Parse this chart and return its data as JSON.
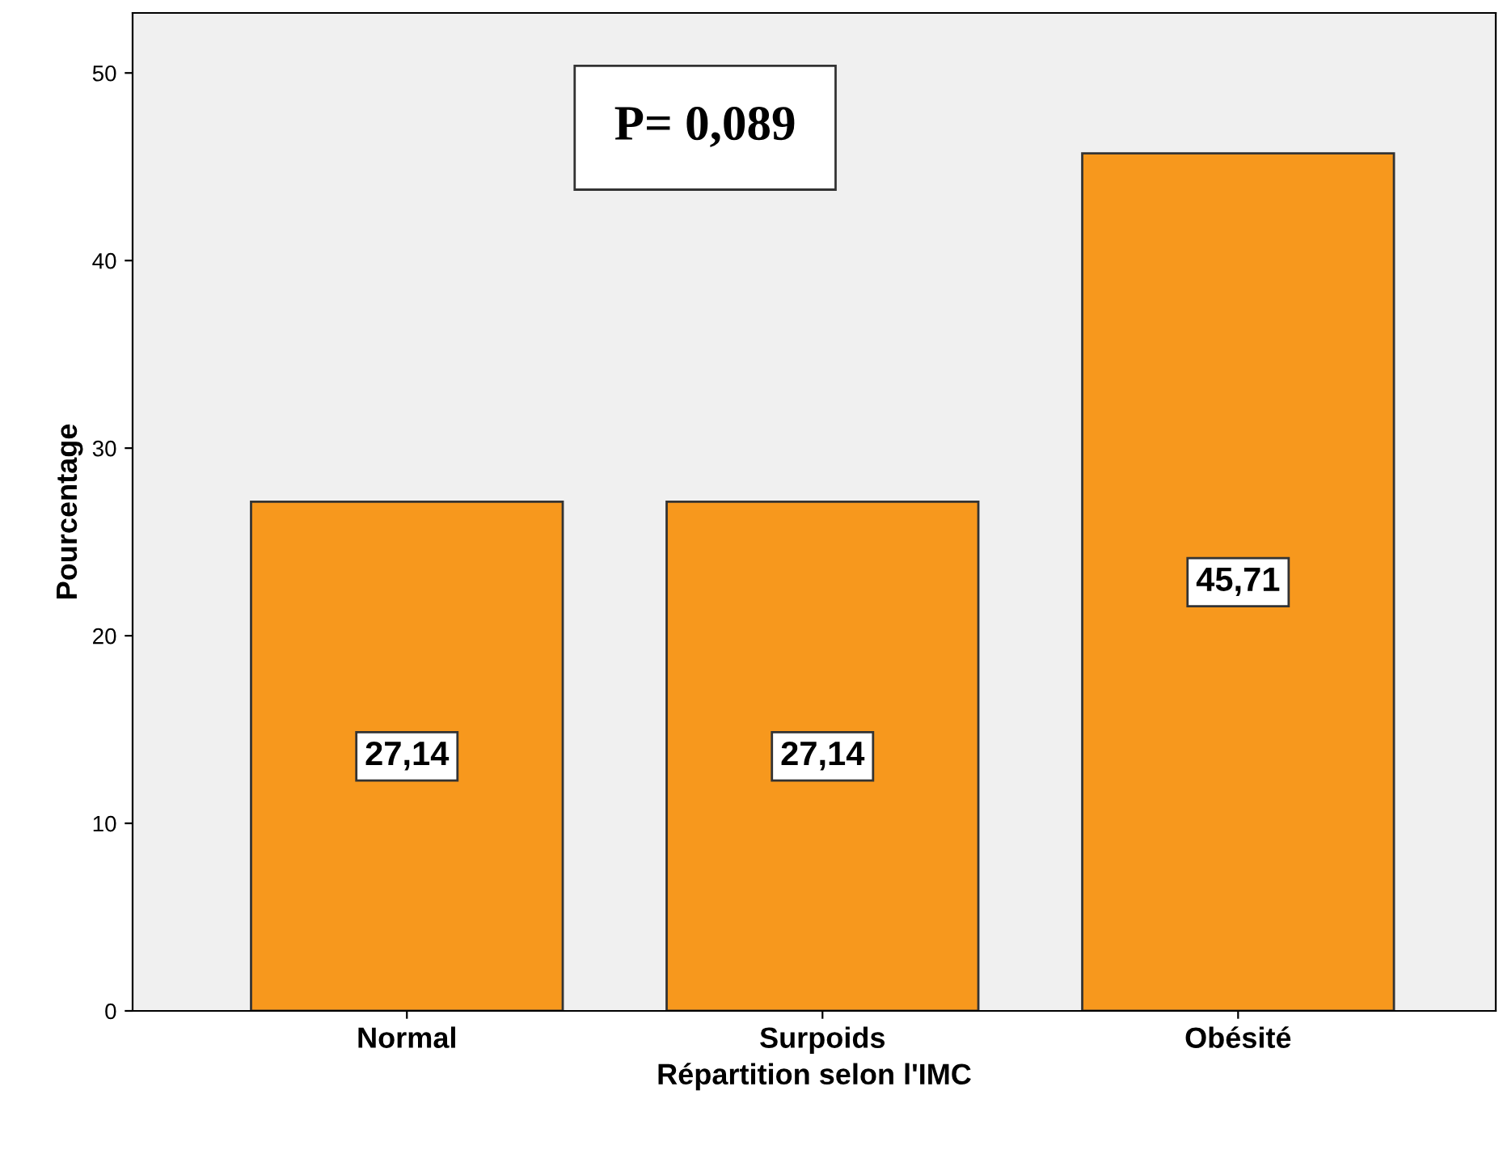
{
  "chart_data": {
    "type": "bar",
    "categories": [
      "Normal",
      "Surpoids",
      "Obésité"
    ],
    "values": [
      27.14,
      27.14,
      45.71
    ],
    "value_labels": [
      "27,14",
      "27,14",
      "45,71"
    ],
    "color": "#f7981d",
    "xlabel": "Répartition selon l'IMC",
    "ylabel": "Pourcentage",
    "ylim": [
      0,
      53.2
    ],
    "yticks": [
      0,
      10,
      20,
      30,
      40,
      50
    ],
    "annotations": [
      "P= 0,089"
    ],
    "grid": false,
    "legend": false
  }
}
